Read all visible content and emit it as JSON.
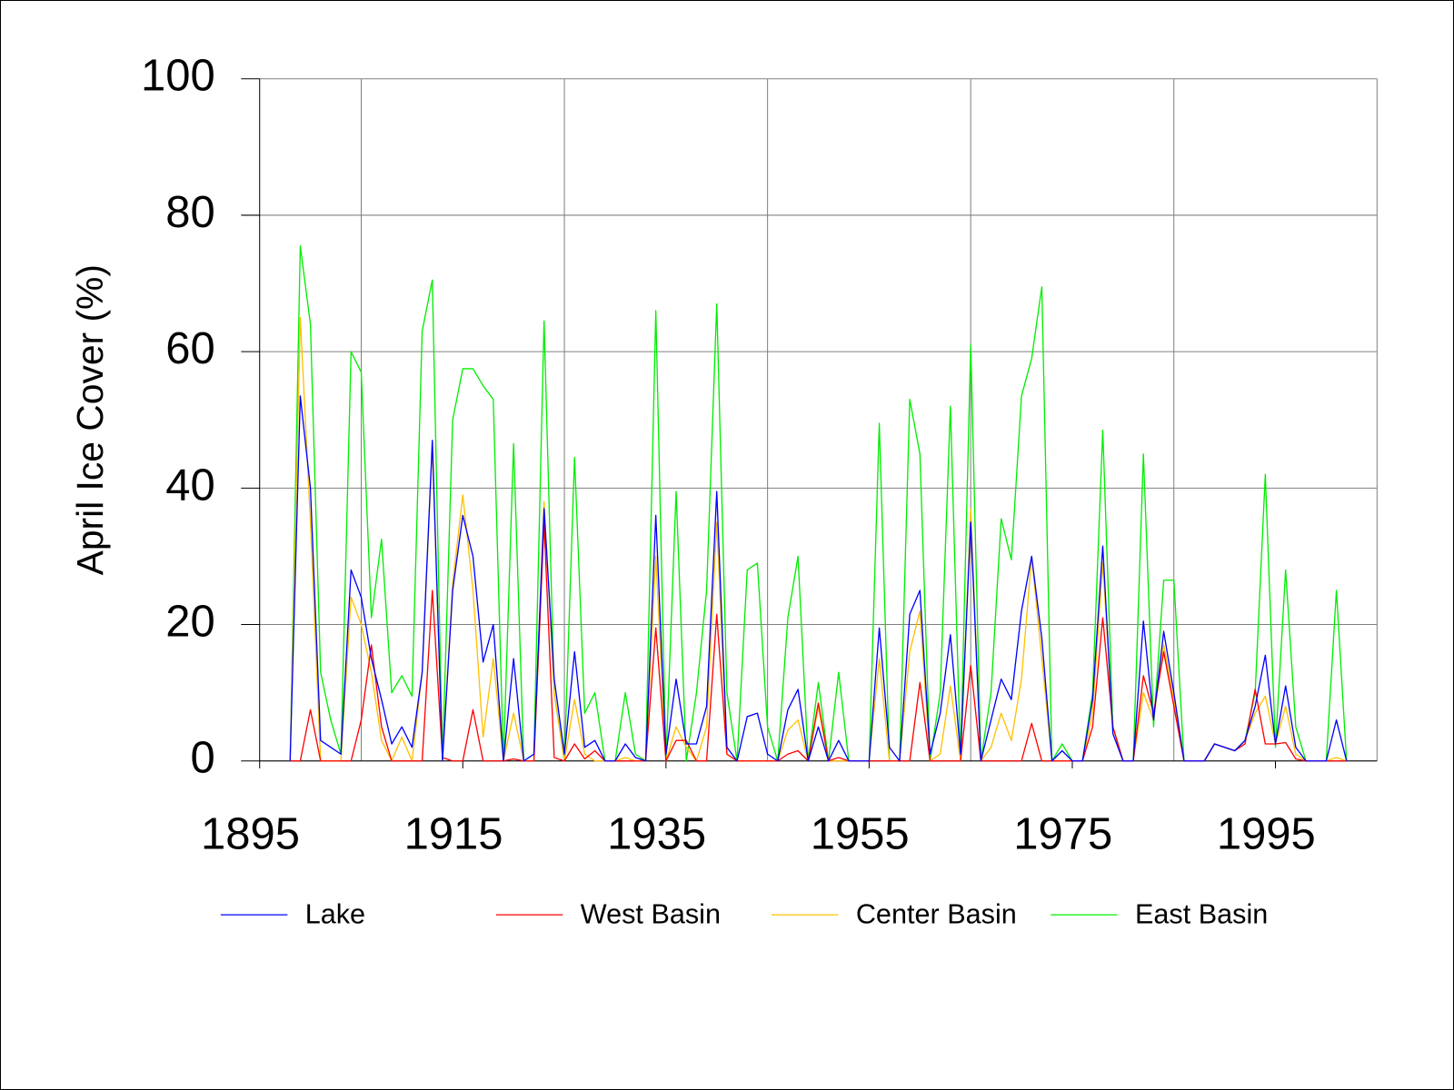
{
  "chart_data": {
    "type": "line",
    "y_label": "April Ice Cover (%)",
    "x": [
      1898,
      1899,
      1900,
      1901,
      1902,
      1903,
      1904,
      1905,
      1906,
      1907,
      1908,
      1909,
      1910,
      1911,
      1912,
      1913,
      1914,
      1915,
      1916,
      1917,
      1918,
      1919,
      1920,
      1921,
      1922,
      1923,
      1924,
      1925,
      1926,
      1927,
      1928,
      1929,
      1930,
      1931,
      1932,
      1933,
      1934,
      1935,
      1936,
      1937,
      1938,
      1939,
      1940,
      1941,
      1942,
      1943,
      1944,
      1945,
      1946,
      1947,
      1948,
      1949,
      1950,
      1951,
      1952,
      1953,
      1954,
      1955,
      1956,
      1957,
      1958,
      1959,
      1960,
      1961,
      1962,
      1963,
      1964,
      1965,
      1966,
      1967,
      1968,
      1969,
      1970,
      1971,
      1972,
      1973,
      1974,
      1975,
      1976,
      1977,
      1978,
      1979,
      1980,
      1981,
      1982,
      1983,
      1984,
      1985,
      1986,
      1987,
      1988,
      1989,
      1990,
      1991,
      1992,
      1993,
      1994,
      1995,
      1996,
      1997,
      1998,
      1999,
      2000,
      2001,
      2002
    ],
    "series": [
      {
        "name": "Lake",
        "color": "#0000ff",
        "values": [
          0,
          53.5,
          40,
          3,
          2,
          1,
          28,
          24,
          15,
          9,
          2.5,
          5,
          2,
          13,
          47,
          0,
          25,
          36,
          30,
          14.5,
          20,
          0,
          15,
          0,
          1,
          37,
          12,
          1,
          16,
          2,
          3,
          0,
          0,
          2.5,
          0.5,
          0,
          36,
          1,
          12,
          2.5,
          2.5,
          8,
          39.5,
          2,
          0,
          6.5,
          7,
          1,
          0,
          7.5,
          10.5,
          0,
          5,
          0,
          3,
          0,
          0,
          0,
          19.5,
          2,
          0,
          21.5,
          25,
          1,
          7,
          18.5,
          1,
          35,
          0,
          6,
          12,
          9,
          22,
          30,
          18,
          0,
          1.5,
          0,
          0,
          9,
          31.5,
          4,
          0,
          0,
          20.5,
          6,
          19,
          10,
          0,
          0,
          0,
          2.5,
          2,
          1.5,
          3,
          8,
          15.5,
          2.5,
          11,
          2,
          0,
          0,
          0,
          6,
          0
        ]
      },
      {
        "name": "West Basin",
        "color": "#ff0000",
        "values": [
          0,
          0,
          7.5,
          0,
          0,
          0,
          0,
          6,
          17,
          5,
          0,
          0,
          0,
          0,
          25,
          0.5,
          0,
          0,
          7.5,
          0,
          0,
          0,
          0.3,
          0,
          0,
          35,
          0.5,
          0,
          2.5,
          0.3,
          1.5,
          0,
          0,
          0,
          0,
          0,
          19.5,
          0,
          3,
          3,
          0,
          0,
          21.5,
          1,
          0,
          0,
          0,
          0,
          0,
          1,
          1.5,
          0,
          8.5,
          0,
          0.5,
          0,
          0,
          0,
          0,
          0,
          0,
          0,
          11.5,
          0,
          0,
          0,
          0,
          14,
          0,
          0,
          0,
          0,
          0,
          5.5,
          0,
          0,
          0,
          0,
          0,
          5,
          21,
          5,
          0,
          0,
          12.5,
          7,
          16,
          8,
          0,
          0,
          0,
          2.5,
          2,
          1.5,
          2.5,
          10.5,
          2.5,
          2.5,
          2.7,
          0.3,
          0,
          0,
          0,
          0,
          0
        ]
      },
      {
        "name": "Center Basin",
        "color": "#ffc000",
        "values": [
          0,
          65,
          35,
          0,
          0,
          0,
          24,
          20,
          13,
          3,
          0,
          3.5,
          0,
          13,
          46,
          0,
          26,
          39,
          25,
          3.5,
          15,
          0,
          7,
          0,
          0,
          38,
          10,
          0,
          9,
          1,
          0,
          0,
          0,
          0.5,
          0,
          0,
          30,
          0,
          5,
          2,
          0,
          5,
          35,
          1,
          0,
          0,
          0,
          0,
          0,
          4.5,
          6,
          0,
          8,
          0,
          0,
          0,
          0,
          0,
          15,
          0,
          0,
          16,
          22,
          0,
          1,
          11,
          0,
          37,
          0,
          2,
          7,
          3,
          12,
          30,
          15,
          0,
          0,
          0,
          0,
          7,
          29,
          5,
          0,
          0,
          10,
          6,
          17,
          9,
          0,
          0,
          0,
          2.5,
          2,
          1.5,
          3,
          7,
          9.5,
          2.5,
          8,
          1,
          0,
          0,
          0,
          0.5,
          0
        ]
      },
      {
        "name": "East Basin",
        "color": "#00ee00",
        "values": [
          0,
          75.5,
          64,
          13,
          6,
          1,
          60,
          57,
          21,
          32.5,
          10,
          12.5,
          9.5,
          63,
          70.5,
          0,
          50,
          57.5,
          57.5,
          55,
          53,
          0,
          46.5,
          0,
          1,
          64.5,
          10,
          0,
          44.5,
          7,
          10,
          0,
          0,
          10,
          1,
          0,
          66,
          0,
          39.5,
          0,
          10,
          25,
          67,
          10,
          0,
          28,
          29,
          5,
          0,
          21,
          30,
          0,
          11.5,
          0,
          13,
          0,
          0,
          0,
          49.5,
          0,
          0,
          53,
          45,
          0,
          10,
          52,
          0,
          61,
          0,
          10,
          35.5,
          29.5,
          53.5,
          59,
          69.5,
          0,
          2.5,
          0,
          0,
          10,
          48.5,
          5,
          0,
          0,
          45,
          5,
          26.5,
          26.5,
          0,
          0,
          0,
          2.5,
          2,
          1.5,
          3,
          10,
          42,
          2,
          28,
          5,
          0,
          0,
          0,
          25,
          0
        ]
      }
    ],
    "xlim": [
      1895,
      2005
    ],
    "xticks": [
      1895,
      1915,
      1935,
      1955,
      1975,
      1995
    ],
    "xgrid": [
      1905,
      1925,
      1945,
      1965,
      1985,
      2005
    ],
    "ylim": [
      0,
      100
    ],
    "yticks": [
      0,
      20,
      40,
      60,
      80,
      100
    ],
    "grid": true,
    "legend": "bottom"
  }
}
